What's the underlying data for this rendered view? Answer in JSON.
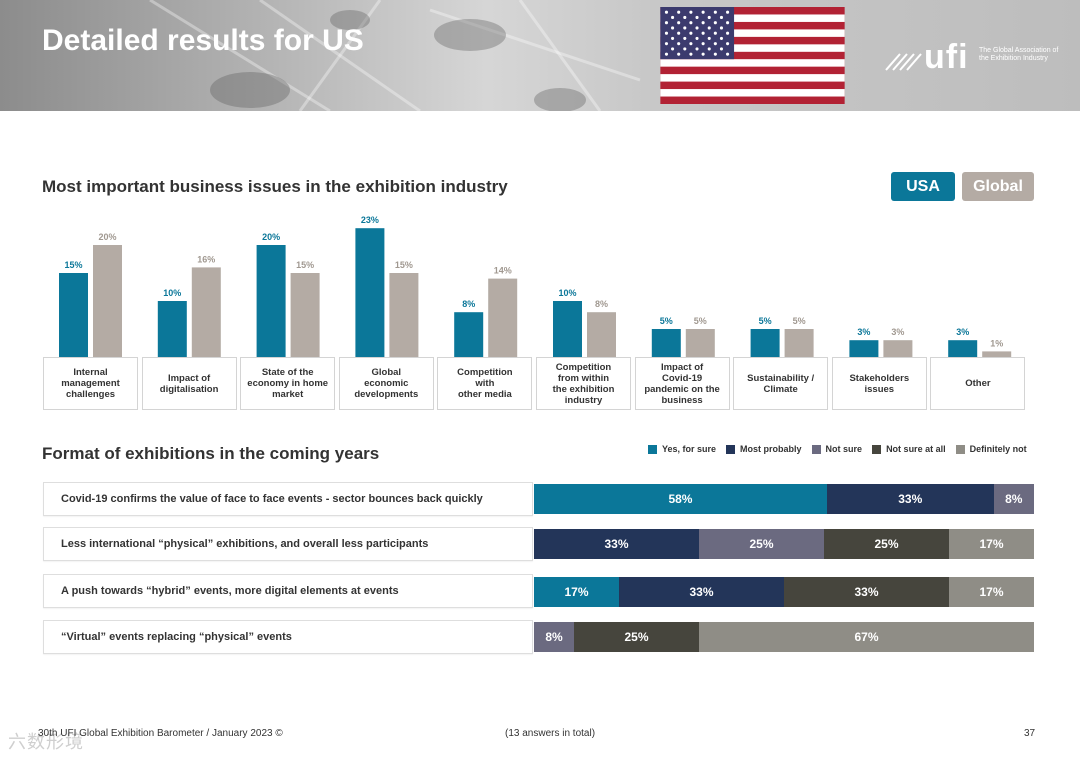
{
  "header": {
    "title": "Detailed results for US"
  },
  "logo": {
    "word": "ufi",
    "tagline": "The Global Association of the Exhibition Industry"
  },
  "colors": {
    "usa": "#0b7799",
    "global": "#b4aba4",
    "yes_for_sure": "#0b7799",
    "most_probably": "#233559",
    "not_sure": "#6b6a80",
    "not_sure_at_all": "#46453d",
    "definitely_not": "#8f8d86"
  },
  "toggle": {
    "usa_label": "USA",
    "global_label": "Global"
  },
  "section1": {
    "title": "Most important business issues in the exhibition industry"
  },
  "section2": {
    "title": "Format of exhibitions in the coming years"
  },
  "chart_data": [
    {
      "type": "bar",
      "title": "Most important business issues in the exhibition industry",
      "categories": [
        "Internal management challenges",
        "Impact of digitalisation",
        "State of the economy in home market",
        "Global economic developments",
        "Competition with other media",
        "Competition from within the exhibition industry",
        "Impact of Covid-19 pandemic on the business",
        "Sustainability / Climate",
        "Stakeholders issues",
        "Other"
      ],
      "category_lines": [
        [
          "Internal",
          "management",
          "challenges"
        ],
        [
          "Impact of",
          "digitalisation"
        ],
        [
          "State of the",
          "economy in home",
          "market"
        ],
        [
          "Global",
          "economic",
          "developments"
        ],
        [
          "Competition",
          "with",
          "other media"
        ],
        [
          "Competition",
          "from within",
          "the exhibition",
          "industry"
        ],
        [
          "Impact of",
          "Covid-19",
          "pandemic on the",
          "business"
        ],
        [
          "Sustainability /",
          "Climate"
        ],
        [
          "Stakeholders",
          "issues"
        ],
        [
          "Other"
        ]
      ],
      "series": [
        {
          "name": "USA",
          "values": [
            15,
            10,
            20,
            23,
            8,
            10,
            5,
            5,
            3,
            3
          ],
          "labels": [
            "15%",
            "10%",
            "20%",
            "23%",
            "8%",
            "10%",
            "5%",
            "5%",
            "3%",
            "3%"
          ]
        },
        {
          "name": "Global",
          "values": [
            20,
            16,
            15,
            15,
            14,
            8,
            5,
            5,
            3,
            1
          ],
          "labels": [
            "20%",
            "16%",
            "15%",
            "15%",
            "14%",
            "8%",
            "5%",
            "5%",
            "3%",
            "1%"
          ]
        }
      ],
      "ylim": [
        0,
        25
      ]
    },
    {
      "type": "bar",
      "orientation": "horizontal-stacked",
      "title": "Format of exhibitions in the coming years",
      "legend": [
        "Yes, for sure",
        "Most probably",
        "Not sure",
        "Not sure at all",
        "Definitely not"
      ],
      "legend_position": "top-right",
      "rows": [
        {
          "label": "Covid-19 confirms the value of face to face events - sector bounces back quickly",
          "values": [
            58,
            33,
            8,
            0,
            0
          ],
          "labels": [
            "58%",
            "33%",
            "8%",
            "",
            ""
          ]
        },
        {
          "label": "Less international “physical” exhibitions, and overall less participants",
          "values": [
            0,
            33,
            25,
            25,
            17
          ],
          "labels": [
            "",
            "33%",
            "25%",
            "25%",
            "17%"
          ]
        },
        {
          "label": "A push towards “hybrid” events, more digital elements at events",
          "values": [
            17,
            33,
            0,
            33,
            17
          ],
          "labels": [
            "17%",
            "33%",
            "",
            "33%",
            "17%"
          ]
        },
        {
          "label": "“Virtual” events replacing “physical” events",
          "values": [
            0,
            0,
            8,
            25,
            67
          ],
          "labels": [
            "",
            "",
            "8%",
            "25%",
            "67%"
          ]
        }
      ]
    }
  ],
  "footer": {
    "left": "30th UFI Global Exhibition Barometer / January 2023 ©",
    "middle": "(13 answers in total)",
    "page": "37"
  },
  "watermark": "六数形境"
}
